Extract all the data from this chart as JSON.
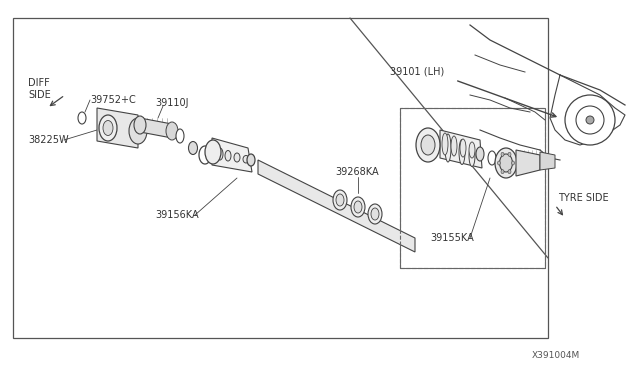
{
  "bg_color": "#ffffff",
  "border_color": "#555555",
  "line_color": "#444444",
  "text_color": "#333333",
  "diagram_id": "X391004M",
  "labels": {
    "diff_side": "DIFF\nSIDE",
    "tyre_side": "TYRE SIDE",
    "p39752": "39752+C",
    "p39110": "39110J",
    "p38225": "38225W",
    "p39156": "39156KA",
    "p39268": "39268KA",
    "p39101": "39101 (LH)",
    "p39155": "39155KA"
  }
}
